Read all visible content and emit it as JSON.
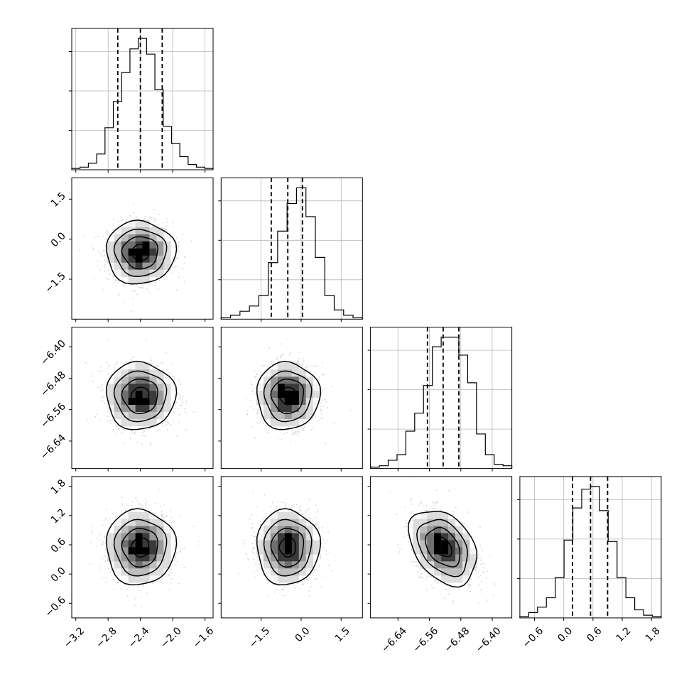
{
  "chart_data": {
    "type": "corner",
    "title": "",
    "parameters": [
      {
        "index": 0,
        "range": [
          -3.25,
          -1.5
        ],
        "ticks": [
          "-3.2",
          "-2.8",
          "-2.4",
          "-2.0",
          "-1.6"
        ],
        "quantiles": [
          -2.68,
          -2.4,
          -2.13
        ],
        "hist": [
          0.01,
          0.02,
          0.05,
          0.12,
          0.32,
          0.52,
          0.74,
          0.92,
          1.0,
          0.88,
          0.61,
          0.33,
          0.2,
          0.1,
          0.04,
          0.02,
          0.01
        ]
      },
      {
        "index": 1,
        "range": [
          -3.0,
          2.3
        ],
        "ticks": [
          "-1.5",
          "0.0",
          "1.5"
        ],
        "quantiles": [
          -1.12,
          -0.5,
          0.05
        ],
        "hist": [
          0.01,
          0.03,
          0.06,
          0.1,
          0.18,
          0.43,
          0.67,
          0.88,
          1.0,
          0.78,
          0.47,
          0.18,
          0.07,
          0.03,
          0.01
        ]
      },
      {
        "index": 2,
        "range": [
          -6.71,
          -6.35
        ],
        "ticks": [
          "-6.64",
          "-6.56",
          "-6.48",
          "-6.40"
        ],
        "quantiles": [
          -6.565,
          -6.525,
          -6.485
        ],
        "hist": [
          0.01,
          0.02,
          0.06,
          0.1,
          0.27,
          0.4,
          0.6,
          0.88,
          0.95,
          0.95,
          0.82,
          0.62,
          0.25,
          0.1,
          0.03,
          0.02
        ]
      },
      {
        "index": 3,
        "range": [
          -0.9,
          2.0
        ],
        "ticks": [
          "-0.6",
          "0.0",
          "0.6",
          "1.2",
          "1.8"
        ],
        "quantiles": [
          0.18,
          0.55,
          0.9
        ],
        "hist": [
          0.01,
          0.04,
          0.08,
          0.15,
          0.3,
          0.58,
          0.82,
          0.96,
          0.98,
          0.8,
          0.57,
          0.3,
          0.15,
          0.06,
          0.02,
          0.01
        ]
      }
    ],
    "yticks": {
      "1": [
        "1.5",
        "0.0",
        "-1.5"
      ],
      "2": [
        "-6.40",
        "-6.48",
        "-6.56",
        "-6.64"
      ],
      "3": [
        "1.8",
        "1.2",
        "0.6",
        "0.0",
        "-0.6"
      ]
    },
    "pairs": [
      {
        "row": 1,
        "col": 0,
        "center": [
          -2.4,
          -0.5
        ],
        "sigma": [
          0.2,
          0.55
        ],
        "rho": 0.0
      },
      {
        "row": 2,
        "col": 0,
        "center": [
          -2.4,
          -6.525
        ],
        "sigma": [
          0.2,
          0.04
        ],
        "rho": 0.0
      },
      {
        "row": 2,
        "col": 1,
        "center": [
          -0.5,
          -6.525
        ],
        "sigma": [
          0.55,
          0.04
        ],
        "rho": 0.0
      },
      {
        "row": 3,
        "col": 0,
        "center": [
          -2.4,
          0.55
        ],
        "sigma": [
          0.2,
          0.36
        ],
        "rho": 0.0
      },
      {
        "row": 3,
        "col": 1,
        "center": [
          -0.5,
          0.55
        ],
        "sigma": [
          0.55,
          0.36
        ],
        "rho": 0.0
      },
      {
        "row": 3,
        "col": 2,
        "center": [
          -6.525,
          0.55
        ],
        "sigma": [
          0.04,
          0.36
        ],
        "rho": -0.35
      }
    ],
    "grid": true,
    "scatter_color": "#b0b0b0",
    "contour_color": "#000000",
    "density_colors": [
      "#f4f4f4",
      "#dddddd",
      "#bdbdbd",
      "#999999",
      "#6f6f6f",
      "#3a3a3a",
      "#000000"
    ]
  }
}
